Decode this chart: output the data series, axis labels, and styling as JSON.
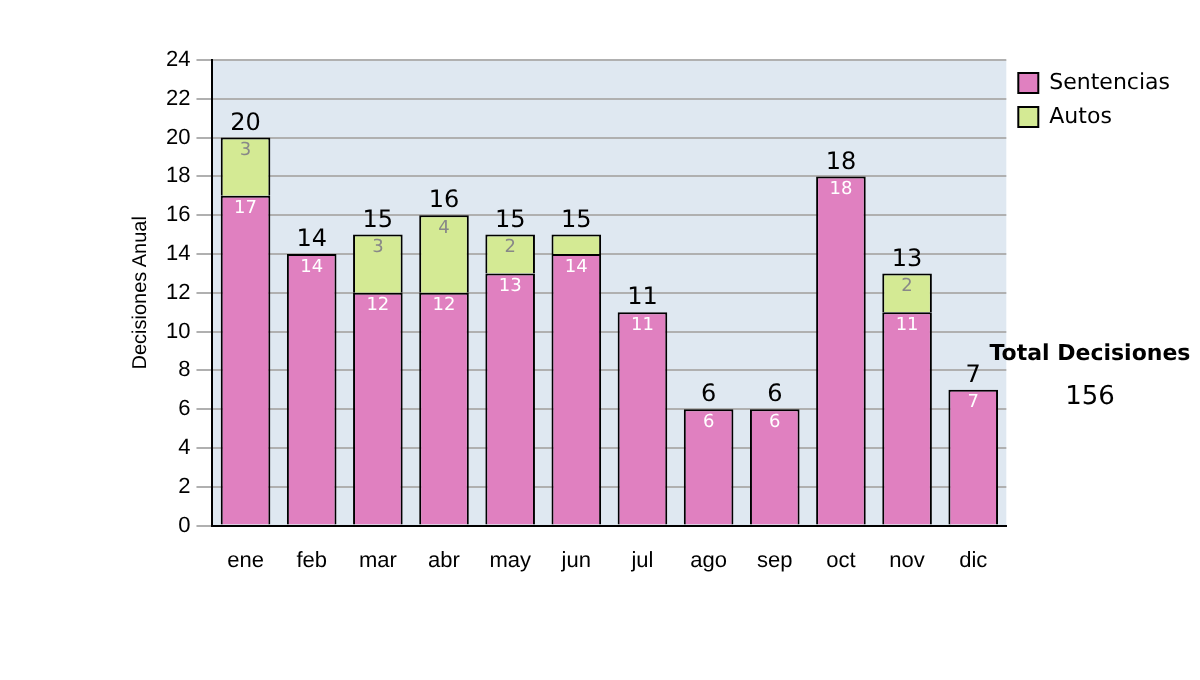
{
  "chart_data": {
    "type": "bar",
    "stacked": true,
    "ylabel": "Decisiones Anual",
    "categories": [
      "ene",
      "feb",
      "mar",
      "abr",
      "may",
      "jun",
      "jul",
      "ago",
      "sep",
      "oct",
      "nov",
      "dic"
    ],
    "series": [
      {
        "name": "Sentencias",
        "color": "#e080c0",
        "values": [
          17,
          14,
          12,
          12,
          13,
          14,
          11,
          6,
          6,
          18,
          11,
          7
        ],
        "value_labels": [
          "17",
          "14",
          "12",
          "12",
          "13",
          "14",
          "11",
          "6",
          "6",
          "18",
          "11",
          "7"
        ]
      },
      {
        "name": "Autos",
        "color": "#d4ea94",
        "values": [
          3,
          null,
          3,
          4,
          2,
          1,
          null,
          null,
          null,
          null,
          2,
          null
        ],
        "value_labels": [
          "3",
          null,
          "3",
          "4",
          "2",
          null,
          null,
          null,
          null,
          null,
          "2",
          null
        ]
      }
    ],
    "totals": [
      "20",
      "14",
      "15",
      "16",
      "15",
      "15",
      "11",
      "6",
      "6",
      "18",
      "13",
      "7"
    ],
    "ylim": [
      0,
      24
    ],
    "yticks": [
      0,
      2,
      4,
      6,
      8,
      10,
      12,
      14,
      16,
      18,
      20,
      22,
      24
    ],
    "grid": "y",
    "legend": "right",
    "annotations": [
      "Total Decisiones",
      "156"
    ]
  }
}
